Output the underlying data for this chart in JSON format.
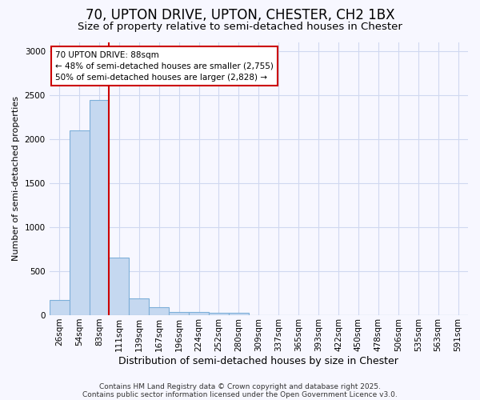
{
  "title1": "70, UPTON DRIVE, UPTON, CHESTER, CH2 1BX",
  "title2": "Size of property relative to semi-detached houses in Chester",
  "xlabel": "Distribution of semi-detached houses by size in Chester",
  "ylabel": "Number of semi-detached properties",
  "bar_color": "#c5d8f0",
  "bar_edge_color": "#7dafd9",
  "categories": [
    "26sqm",
    "54sqm",
    "83sqm",
    "111sqm",
    "139sqm",
    "167sqm",
    "196sqm",
    "224sqm",
    "252sqm",
    "280sqm",
    "309sqm",
    "337sqm",
    "365sqm",
    "393sqm",
    "422sqm",
    "450sqm",
    "478sqm",
    "506sqm",
    "535sqm",
    "563sqm",
    "591sqm"
  ],
  "values": [
    175,
    2100,
    2440,
    650,
    195,
    90,
    40,
    40,
    30,
    30,
    0,
    0,
    0,
    0,
    0,
    0,
    0,
    0,
    0,
    0,
    0
  ],
  "ylim": [
    0,
    3100
  ],
  "yticks": [
    0,
    500,
    1000,
    1500,
    2000,
    2500,
    3000
  ],
  "annotation_title": "70 UPTON DRIVE: 88sqm",
  "annotation_left": "← 48% of semi-detached houses are smaller (2,755)",
  "annotation_right": "50% of semi-detached houses are larger (2,828) →",
  "red_line_x": 2.5,
  "annotation_box_color": "#ffffff",
  "annotation_box_edge": "#cc0000",
  "red_line_color": "#cc0000",
  "footer1": "Contains HM Land Registry data © Crown copyright and database right 2025.",
  "footer2": "Contains public sector information licensed under the Open Government Licence v3.0.",
  "background_color": "#f7f7ff",
  "grid_color": "#d0d8f0",
  "title1_fontsize": 12,
  "title2_fontsize": 9.5,
  "xlabel_fontsize": 9,
  "ylabel_fontsize": 8,
  "tick_fontsize": 7.5,
  "footer_fontsize": 6.5
}
